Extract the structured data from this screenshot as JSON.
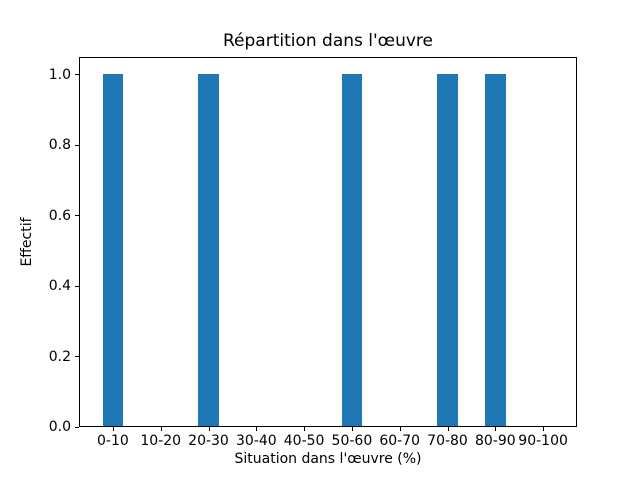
{
  "chart_data": {
    "type": "bar",
    "title": "Répartition dans l'œuvre",
    "xlabel": "Situation dans l'œuvre (%)",
    "ylabel": "Effectif",
    "categories": [
      "0-10",
      "10-20",
      "20-30",
      "30-40",
      "40-50",
      "50-60",
      "60-70",
      "70-80",
      "80-90",
      "90-100"
    ],
    "values": [
      1,
      0,
      1,
      0,
      0,
      1,
      0,
      1,
      1,
      0
    ],
    "yticks": [
      "0.0",
      "0.2",
      "0.4",
      "0.6",
      "0.8",
      "1.0"
    ],
    "ylim": [
      0,
      1.05
    ],
    "bar_color": "#1f77b4",
    "grid": false,
    "legend": false,
    "background_color": "#ffffff",
    "axis_color": "#000000"
  }
}
